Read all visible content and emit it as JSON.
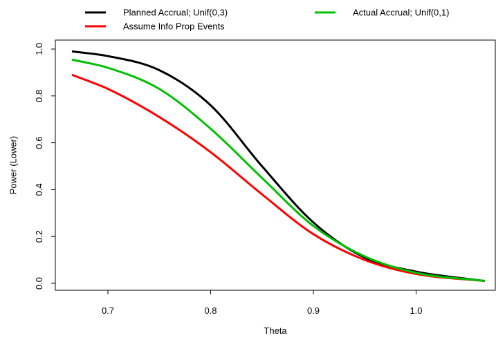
{
  "chart_data": {
    "type": "line",
    "xlabel": "Theta",
    "ylabel": "Power (Lower)",
    "xlim": [
      0.665,
      1.067
    ],
    "ylim": [
      0.0,
      1.0
    ],
    "x_ticks": [
      0.7,
      0.8,
      0.9,
      1.0
    ],
    "y_ticks": [
      0.0,
      0.2,
      0.4,
      0.6,
      0.8,
      1.0
    ],
    "x_tick_labels": [
      "0.7",
      "0.8",
      "0.9",
      "1.0"
    ],
    "y_tick_labels": [
      "0.0",
      "0.2",
      "0.4",
      "0.6",
      "0.8",
      "1.0"
    ],
    "grid": false,
    "legend_position": "top",
    "x": [
      0.665,
      0.7,
      0.75,
      0.8,
      0.85,
      0.9,
      0.95,
      1.0,
      1.067
    ],
    "series": [
      {
        "name": "Planned Accrual; Unif(0,3)",
        "color": "#000000",
        "values": [
          0.99,
          0.97,
          0.91,
          0.76,
          0.5,
          0.26,
          0.11,
          0.05,
          0.01
        ]
      },
      {
        "name": "Assume Info Prop Events",
        "color": "#ff0000",
        "values": [
          0.89,
          0.83,
          0.71,
          0.56,
          0.38,
          0.21,
          0.1,
          0.04,
          0.01
        ]
      },
      {
        "name": "Actual Accrual; Unif(0,1)",
        "color": "#00c000",
        "values": [
          0.955,
          0.92,
          0.83,
          0.66,
          0.45,
          0.245,
          0.115,
          0.045,
          0.01
        ]
      }
    ]
  }
}
